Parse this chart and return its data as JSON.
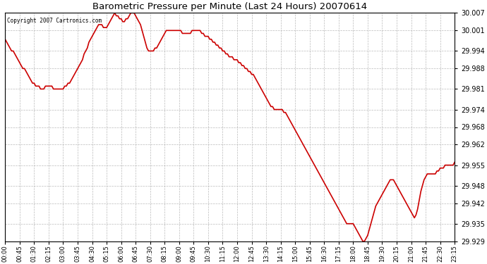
{
  "title": "Barometric Pressure per Minute (Last 24 Hours) 20070614",
  "copyright_text": "Copyright 2007 Cartronics.com",
  "line_color": "#cc0000",
  "bg_color": "#ffffff",
  "plot_bg_color": "#ffffff",
  "grid_color": "#aaaaaa",
  "ylim": [
    29.929,
    30.007
  ],
  "yticks": [
    29.929,
    29.935,
    29.942,
    29.948,
    29.955,
    29.962,
    29.968,
    29.974,
    29.981,
    29.988,
    29.994,
    30.001,
    30.007
  ],
  "xtick_labels": [
    "00:00",
    "00:45",
    "01:30",
    "02:15",
    "03:00",
    "03:45",
    "04:30",
    "05:15",
    "06:00",
    "06:45",
    "07:30",
    "08:15",
    "09:00",
    "09:45",
    "10:30",
    "11:15",
    "12:00",
    "12:45",
    "13:30",
    "14:15",
    "15:00",
    "15:45",
    "16:30",
    "17:15",
    "18:00",
    "18:45",
    "19:30",
    "20:15",
    "21:00",
    "21:45",
    "22:30",
    "23:15"
  ],
  "x_values": [
    0,
    45,
    90,
    135,
    180,
    225,
    270,
    315,
    360,
    405,
    450,
    495,
    540,
    585,
    630,
    675,
    720,
    765,
    810,
    855,
    900,
    945,
    990,
    1035,
    1080,
    1125,
    1170,
    1215,
    1260,
    1305,
    1350,
    1395
  ],
  "pressure_data": [
    [
      0,
      29.998
    ],
    [
      5,
      29.997
    ],
    [
      10,
      29.996
    ],
    [
      15,
      29.995
    ],
    [
      20,
      29.994
    ],
    [
      25,
      29.994
    ],
    [
      30,
      29.993
    ],
    [
      35,
      29.992
    ],
    [
      40,
      29.991
    ],
    [
      45,
      29.99
    ],
    [
      50,
      29.989
    ],
    [
      55,
      29.988
    ],
    [
      60,
      29.988
    ],
    [
      65,
      29.987
    ],
    [
      70,
      29.986
    ],
    [
      75,
      29.985
    ],
    [
      80,
      29.984
    ],
    [
      85,
      29.983
    ],
    [
      90,
      29.983
    ],
    [
      95,
      29.982
    ],
    [
      100,
      29.982
    ],
    [
      105,
      29.982
    ],
    [
      110,
      29.981
    ],
    [
      115,
      29.981
    ],
    [
      120,
      29.981
    ],
    [
      125,
      29.982
    ],
    [
      130,
      29.982
    ],
    [
      135,
      29.982
    ],
    [
      140,
      29.982
    ],
    [
      145,
      29.982
    ],
    [
      150,
      29.981
    ],
    [
      155,
      29.981
    ],
    [
      160,
      29.981
    ],
    [
      165,
      29.981
    ],
    [
      170,
      29.981
    ],
    [
      175,
      29.981
    ],
    [
      180,
      29.981
    ],
    [
      185,
      29.982
    ],
    [
      190,
      29.982
    ],
    [
      195,
      29.983
    ],
    [
      200,
      29.983
    ],
    [
      205,
      29.984
    ],
    [
      210,
      29.985
    ],
    [
      215,
      29.986
    ],
    [
      220,
      29.987
    ],
    [
      225,
      29.988
    ],
    [
      230,
      29.989
    ],
    [
      235,
      29.99
    ],
    [
      240,
      29.991
    ],
    [
      245,
      29.993
    ],
    [
      250,
      29.994
    ],
    [
      255,
      29.995
    ],
    [
      260,
      29.997
    ],
    [
      265,
      29.998
    ],
    [
      270,
      29.999
    ],
    [
      275,
      30.0
    ],
    [
      280,
      30.001
    ],
    [
      285,
      30.002
    ],
    [
      290,
      30.003
    ],
    [
      295,
      30.003
    ],
    [
      300,
      30.003
    ],
    [
      305,
      30.002
    ],
    [
      310,
      30.002
    ],
    [
      315,
      30.002
    ],
    [
      320,
      30.003
    ],
    [
      325,
      30.004
    ],
    [
      330,
      30.005
    ],
    [
      335,
      30.006
    ],
    [
      340,
      30.007
    ],
    [
      345,
      30.006
    ],
    [
      350,
      30.006
    ],
    [
      355,
      30.005
    ],
    [
      360,
      30.005
    ],
    [
      365,
      30.004
    ],
    [
      370,
      30.004
    ],
    [
      375,
      30.005
    ],
    [
      380,
      30.005
    ],
    [
      385,
      30.006
    ],
    [
      390,
      30.007
    ],
    [
      395,
      30.007
    ],
    [
      400,
      30.007
    ],
    [
      405,
      30.006
    ],
    [
      410,
      30.005
    ],
    [
      415,
      30.004
    ],
    [
      420,
      30.003
    ],
    [
      425,
      30.001
    ],
    [
      430,
      29.999
    ],
    [
      435,
      29.997
    ],
    [
      440,
      29.995
    ],
    [
      445,
      29.994
    ],
    [
      450,
      29.994
    ],
    [
      455,
      29.994
    ],
    [
      460,
      29.994
    ],
    [
      465,
      29.995
    ],
    [
      470,
      29.995
    ],
    [
      475,
      29.996
    ],
    [
      480,
      29.997
    ],
    [
      485,
      29.998
    ],
    [
      490,
      29.999
    ],
    [
      495,
      30.0
    ],
    [
      500,
      30.001
    ],
    [
      505,
      30.001
    ],
    [
      510,
      30.001
    ],
    [
      515,
      30.001
    ],
    [
      520,
      30.001
    ],
    [
      525,
      30.001
    ],
    [
      530,
      30.001
    ],
    [
      535,
      30.001
    ],
    [
      540,
      30.001
    ],
    [
      545,
      30.001
    ],
    [
      550,
      30.0
    ],
    [
      555,
      30.0
    ],
    [
      560,
      30.0
    ],
    [
      565,
      30.0
    ],
    [
      570,
      30.0
    ],
    [
      575,
      30.0
    ],
    [
      580,
      30.001
    ],
    [
      585,
      30.001
    ],
    [
      590,
      30.001
    ],
    [
      595,
      30.001
    ],
    [
      600,
      30.001
    ],
    [
      605,
      30.001
    ],
    [
      610,
      30.0
    ],
    [
      615,
      30.0
    ],
    [
      620,
      29.999
    ],
    [
      625,
      29.999
    ],
    [
      630,
      29.999
    ],
    [
      635,
      29.998
    ],
    [
      640,
      29.998
    ],
    [
      645,
      29.997
    ],
    [
      650,
      29.997
    ],
    [
      655,
      29.996
    ],
    [
      660,
      29.996
    ],
    [
      665,
      29.995
    ],
    [
      670,
      29.995
    ],
    [
      675,
      29.994
    ],
    [
      680,
      29.994
    ],
    [
      685,
      29.993
    ],
    [
      690,
      29.993
    ],
    [
      695,
      29.992
    ],
    [
      700,
      29.992
    ],
    [
      705,
      29.992
    ],
    [
      710,
      29.991
    ],
    [
      715,
      29.991
    ],
    [
      720,
      29.991
    ],
    [
      725,
      29.99
    ],
    [
      730,
      29.99
    ],
    [
      735,
      29.989
    ],
    [
      740,
      29.989
    ],
    [
      745,
      29.988
    ],
    [
      750,
      29.988
    ],
    [
      755,
      29.987
    ],
    [
      760,
      29.987
    ],
    [
      765,
      29.986
    ],
    [
      770,
      29.986
    ],
    [
      775,
      29.985
    ],
    [
      780,
      29.984
    ],
    [
      785,
      29.983
    ],
    [
      790,
      29.982
    ],
    [
      795,
      29.981
    ],
    [
      800,
      29.98
    ],
    [
      805,
      29.979
    ],
    [
      810,
      29.978
    ],
    [
      815,
      29.977
    ],
    [
      820,
      29.976
    ],
    [
      825,
      29.975
    ],
    [
      830,
      29.975
    ],
    [
      835,
      29.974
    ],
    [
      840,
      29.974
    ],
    [
      845,
      29.974
    ],
    [
      850,
      29.974
    ],
    [
      855,
      29.974
    ],
    [
      860,
      29.974
    ],
    [
      865,
      29.973
    ],
    [
      870,
      29.973
    ],
    [
      875,
      29.972
    ],
    [
      880,
      29.971
    ],
    [
      885,
      29.97
    ],
    [
      890,
      29.969
    ],
    [
      895,
      29.968
    ],
    [
      900,
      29.967
    ],
    [
      905,
      29.966
    ],
    [
      910,
      29.965
    ],
    [
      915,
      29.964
    ],
    [
      920,
      29.963
    ],
    [
      925,
      29.962
    ],
    [
      930,
      29.961
    ],
    [
      935,
      29.96
    ],
    [
      940,
      29.959
    ],
    [
      945,
      29.958
    ],
    [
      950,
      29.957
    ],
    [
      955,
      29.956
    ],
    [
      960,
      29.955
    ],
    [
      965,
      29.954
    ],
    [
      970,
      29.953
    ],
    [
      975,
      29.952
    ],
    [
      980,
      29.951
    ],
    [
      985,
      29.95
    ],
    [
      990,
      29.949
    ],
    [
      995,
      29.948
    ],
    [
      1000,
      29.947
    ],
    [
      1005,
      29.946
    ],
    [
      1010,
      29.945
    ],
    [
      1015,
      29.944
    ],
    [
      1020,
      29.943
    ],
    [
      1025,
      29.942
    ],
    [
      1030,
      29.941
    ],
    [
      1035,
      29.94
    ],
    [
      1040,
      29.939
    ],
    [
      1045,
      29.938
    ],
    [
      1050,
      29.937
    ],
    [
      1055,
      29.936
    ],
    [
      1060,
      29.935
    ],
    [
      1065,
      29.935
    ],
    [
      1070,
      29.935
    ],
    [
      1075,
      29.935
    ],
    [
      1080,
      29.935
    ],
    [
      1085,
      29.934
    ],
    [
      1090,
      29.933
    ],
    [
      1095,
      29.932
    ],
    [
      1100,
      29.931
    ],
    [
      1105,
      29.93
    ],
    [
      1110,
      29.929
    ],
    [
      1115,
      29.929
    ],
    [
      1120,
      29.93
    ],
    [
      1125,
      29.931
    ],
    [
      1130,
      29.933
    ],
    [
      1135,
      29.935
    ],
    [
      1140,
      29.937
    ],
    [
      1145,
      29.939
    ],
    [
      1150,
      29.941
    ],
    [
      1155,
      29.942
    ],
    [
      1160,
      29.943
    ],
    [
      1165,
      29.944
    ],
    [
      1170,
      29.945
    ],
    [
      1175,
      29.946
    ],
    [
      1180,
      29.947
    ],
    [
      1185,
      29.948
    ],
    [
      1190,
      29.949
    ],
    [
      1195,
      29.95
    ],
    [
      1200,
      29.95
    ],
    [
      1205,
      29.95
    ],
    [
      1210,
      29.949
    ],
    [
      1215,
      29.948
    ],
    [
      1220,
      29.947
    ],
    [
      1225,
      29.946
    ],
    [
      1230,
      29.945
    ],
    [
      1235,
      29.944
    ],
    [
      1240,
      29.943
    ],
    [
      1245,
      29.942
    ],
    [
      1250,
      29.941
    ],
    [
      1255,
      29.94
    ],
    [
      1260,
      29.939
    ],
    [
      1265,
      29.938
    ],
    [
      1270,
      29.937
    ],
    [
      1275,
      29.938
    ],
    [
      1280,
      29.94
    ],
    [
      1285,
      29.943
    ],
    [
      1290,
      29.946
    ],
    [
      1295,
      29.948
    ],
    [
      1300,
      29.95
    ],
    [
      1305,
      29.951
    ],
    [
      1310,
      29.952
    ],
    [
      1315,
      29.952
    ],
    [
      1320,
      29.952
    ],
    [
      1325,
      29.952
    ],
    [
      1330,
      29.952
    ],
    [
      1335,
      29.952
    ],
    [
      1340,
      29.953
    ],
    [
      1345,
      29.953
    ],
    [
      1350,
      29.954
    ],
    [
      1355,
      29.954
    ],
    [
      1360,
      29.954
    ],
    [
      1365,
      29.955
    ],
    [
      1370,
      29.955
    ],
    [
      1375,
      29.955
    ],
    [
      1380,
      29.955
    ],
    [
      1385,
      29.955
    ],
    [
      1390,
      29.955
    ],
    [
      1395,
      29.956
    ]
  ]
}
